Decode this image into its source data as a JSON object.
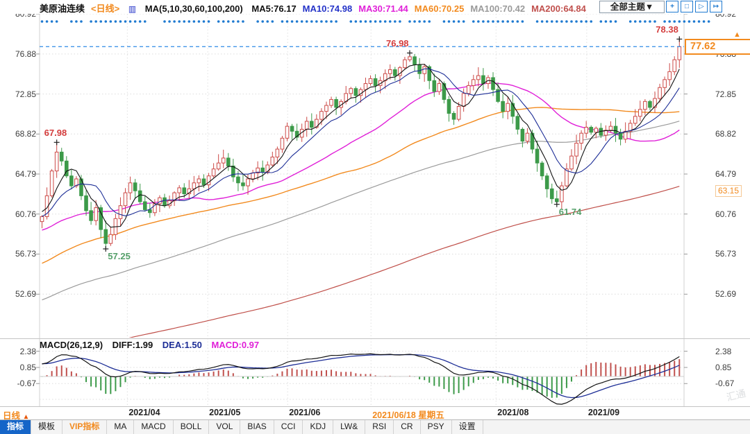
{
  "header": {
    "symbol": "美原油连续",
    "period": "<日线>",
    "ma_title": "MA(5,10,30,60,100,200)",
    "ma_items": [
      {
        "text": "MA5:76.17",
        "color": "#111111"
      },
      {
        "text": "MA10:74.98",
        "color": "#2433c8"
      },
      {
        "text": "MA30:71.44",
        "color": "#e020d8"
      },
      {
        "text": "MA60:70.25",
        "color": "#f28a1e"
      },
      {
        "text": "MA100:70.42",
        "color": "#9a9a9a"
      },
      {
        "text": "MA200:64.84",
        "color": "#c0504d"
      }
    ],
    "theme_button": "全部主题▼",
    "toolbar_icons": [
      {
        "name": "pan-icon",
        "glyph": "+"
      },
      {
        "name": "fit-range-icon",
        "glyph": "□"
      },
      {
        "name": "shift-right-icon",
        "glyph": "▷"
      },
      {
        "name": "jump-latest-icon",
        "glyph": "↦"
      }
    ]
  },
  "chart_data": {
    "type": "candlestick",
    "title": "美原油连续 日线",
    "main": {
      "y_ticks": [
        "80.92",
        "76.88",
        "72.85",
        "68.82",
        "64.79",
        "60.76",
        "56.73",
        "52.69"
      ],
      "y_tick_values": [
        80.92,
        76.88,
        72.85,
        68.82,
        64.79,
        60.76,
        56.73,
        52.69
      ],
      "x_ticks": [
        {
          "label": "2021/04",
          "i": 17.4,
          "highlight": false
        },
        {
          "label": "2021/05",
          "i": 33.8,
          "highlight": false
        },
        {
          "label": "2021/06",
          "i": 50.1,
          "highlight": false
        },
        {
          "label": "2021/06/18 星期五",
          "i": 67.1,
          "highlight": true
        },
        {
          "label": "2021/08",
          "i": 92.6,
          "highlight": false
        },
        {
          "label": "2021/09",
          "i": 111.1,
          "highlight": false
        }
      ],
      "open_first": 60.0,
      "closes": [
        60.5,
        62.6,
        65.1,
        67.0,
        66.1,
        64.6,
        63.6,
        64.3,
        62.6,
        61.1,
        60.1,
        61.4,
        59.2,
        57.8,
        58.7,
        60.3,
        61.6,
        62.9,
        63.9,
        63.1,
        62.0,
        61.2,
        60.9,
        61.8,
        62.4,
        61.6,
        62.1,
        62.9,
        63.4,
        62.8,
        63.3,
        63.9,
        64.3,
        63.7,
        64.6,
        65.3,
        65.9,
        66.4,
        65.6,
        64.5,
        63.9,
        63.6,
        64.3,
        64.9,
        65.4,
        65.0,
        65.7,
        66.5,
        67.3,
        68.4,
        69.6,
        69.1,
        68.5,
        69.3,
        70.1,
        69.5,
        70.3,
        71.1,
        71.7,
        72.3,
        71.5,
        72.1,
        72.9,
        73.4,
        72.7,
        73.3,
        73.9,
        74.4,
        73.7,
        74.2,
        74.9,
        75.3,
        74.7,
        75.5,
        76.3,
        76.6,
        75.8,
        74.9,
        75.6,
        74.2,
        73.1,
        73.9,
        72.3,
        70.9,
        70.3,
        71.6,
        72.9,
        73.7,
        74.3,
        74.7,
        73.9,
        74.5,
        73.3,
        72.1,
        71.1,
        71.9,
        70.6,
        69.3,
        68.1,
        68.9,
        67.3,
        65.9,
        64.6,
        63.3,
        62.3,
        62.0,
        63.6,
        65.3,
        66.6,
        67.9,
        68.9,
        69.5,
        69.0,
        69.4,
        68.7,
        69.2,
        69.6,
        68.9,
        68.3,
        69.1,
        69.9,
        70.6,
        71.3,
        72.1,
        71.5,
        72.4,
        73.5,
        74.3,
        75.1,
        76.3,
        77.62
      ],
      "annotations": [
        {
          "i": 3,
          "price": 67.98,
          "label": "67.98",
          "type": "high",
          "color": "#d43d3d"
        },
        {
          "i": 13,
          "price": 57.25,
          "label": "57.25",
          "type": "low",
          "color": "#55a06a"
        },
        {
          "i": 75,
          "price": 76.98,
          "label": "76.98",
          "type": "high",
          "color": "#d43d3d"
        },
        {
          "i": 105,
          "price": 61.74,
          "label": "61.74",
          "type": "low",
          "color": "#55a06a"
        },
        {
          "i": 130,
          "price": 78.38,
          "label": "78.38",
          "type": "high",
          "color": "#d43d3d"
        }
      ],
      "last_price": "77.62",
      "extra_right_level": "63.15",
      "colors": {
        "up": "#cc4946",
        "down": "#3c9a49",
        "ma5": "#111111",
        "ma10": "#1c2d96",
        "ma30": "#e020d8",
        "ma60": "#f28a1e",
        "ma100": "#9a9a9a",
        "ma200": "#bf4e48",
        "price_line": "#2e8ae6",
        "dots": "#1f7ad0"
      }
    },
    "macd": {
      "y_ticks": [
        "2.38",
        "0.85",
        "-0.67"
      ],
      "y_tick_values": [
        2.38,
        0.85,
        -0.67
      ],
      "params": "MACD(26,12,9)",
      "diff": "DIFF:1.99",
      "dea": "DEA:1.50",
      "macd": "MACD:0.97",
      "colors": {
        "diff": "#111111",
        "dea": "#1c2d96",
        "macd_label": "#e020d8",
        "bar_up": "#c0504d",
        "bar_down": "#3c9a49"
      }
    }
  },
  "period_selector": {
    "label": "日线",
    "arrow": "▲"
  },
  "tabs": [
    {
      "key": "indicator",
      "label": "指标",
      "selected": true,
      "accent": false
    },
    {
      "key": "template",
      "label": "模板",
      "selected": false,
      "accent": false
    },
    {
      "key": "vip",
      "label": "VIP指标",
      "selected": false,
      "accent": true
    },
    {
      "key": "ma",
      "label": "MA",
      "selected": false,
      "accent": false
    },
    {
      "key": "macd",
      "label": "MACD",
      "selected": false,
      "accent": false
    },
    {
      "key": "boll",
      "label": "BOLL",
      "selected": false,
      "accent": false
    },
    {
      "key": "vol",
      "label": "VOL",
      "selected": false,
      "accent": false
    },
    {
      "key": "bias",
      "label": "BIAS",
      "selected": false,
      "accent": false
    },
    {
      "key": "cci",
      "label": "CCI",
      "selected": false,
      "accent": false
    },
    {
      "key": "kdj",
      "label": "KDJ",
      "selected": false,
      "accent": false
    },
    {
      "key": "lwr",
      "label": "LW&",
      "selected": false,
      "accent": false
    },
    {
      "key": "rsi",
      "label": "RSI",
      "selected": false,
      "accent": false
    },
    {
      "key": "cr",
      "label": "CR",
      "selected": false,
      "accent": false
    },
    {
      "key": "psy",
      "label": "PSY",
      "selected": false,
      "accent": false
    },
    {
      "key": "settings",
      "label": "设置",
      "selected": false,
      "accent": false
    }
  ],
  "watermark": "汇通"
}
